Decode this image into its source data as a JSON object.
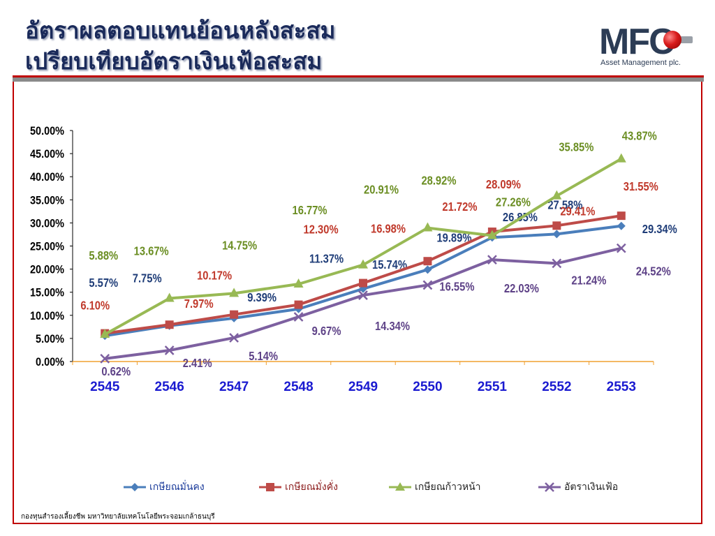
{
  "title": {
    "line1": "อัตราผลตอบแทนย้อนหลังสะสม",
    "line2": "เปรียบเทียบอัตราเงินเฟ้อสะสม"
  },
  "logo": {
    "text": "MFC",
    "subtitle": "Asset Management plc."
  },
  "footer": "กองทุนสำรองเลี้ยงชีพ มหาวิทยาลัยเทคโนโลยีพระจอมเกล้าธนบุรี",
  "colors": {
    "accent": "#c00000",
    "title": "#1a2a5a"
  },
  "chart_data": {
    "type": "line",
    "categories": [
      "2545",
      "2546",
      "2547",
      "2548",
      "2549",
      "2550",
      "2551",
      "2552",
      "2553"
    ],
    "ylim": [
      0,
      50
    ],
    "yticks": [
      "0.00%",
      "5.00%",
      "10.00%",
      "15.00%",
      "20.00%",
      "25.00%",
      "30.00%",
      "35.00%",
      "40.00%",
      "45.00%",
      "50.00%"
    ],
    "legend_position": "bottom",
    "grid": false,
    "series": [
      {
        "name": "เกษียณมั่นคง",
        "color": "#4a7ebb",
        "label_color": "#1f3d78",
        "marker": "diamond",
        "values": [
          5.57,
          7.75,
          9.39,
          11.37,
          15.74,
          19.89,
          26.85,
          27.58,
          29.34
        ],
        "labels": [
          "5.57%",
          "7.75%",
          "9.39%",
          "11.37%",
          "15.74%",
          "19.89%",
          "26.85%",
          "27.58%",
          "29.34%"
        ]
      },
      {
        "name": "เกษียณมั่งคั่ง",
        "color": "#be4b48",
        "label_color": "#c0392b",
        "marker": "square",
        "values": [
          6.1,
          7.97,
          10.17,
          12.3,
          16.98,
          21.72,
          28.09,
          29.41,
          31.55
        ],
        "labels": [
          "6.10%",
          "7.97%",
          "10.17%",
          "12.30%",
          "16.98%",
          "21.72%",
          "28.09%",
          "29.41%",
          "31.55%"
        ]
      },
      {
        "name": "เกษียณก้าวหน้า",
        "color": "#98b954",
        "label_color": "#6b8e23",
        "marker": "triangle",
        "values": [
          5.88,
          13.67,
          14.75,
          16.77,
          20.91,
          28.92,
          27.26,
          35.85,
          43.87
        ],
        "labels": [
          "5.88%",
          "13.67%",
          "14.75%",
          "16.77%",
          "20.91%",
          "28.92%",
          "27.26%",
          "35.85%",
          "43.87%"
        ]
      },
      {
        "name": "อัตราเงินเฟ้อ",
        "color": "#7d60a0",
        "label_color": "#5e4287",
        "marker": "x",
        "values": [
          0.62,
          2.41,
          5.14,
          9.67,
          14.34,
          16.55,
          22.03,
          21.24,
          24.52
        ],
        "labels": [
          "0.62%",
          "2.41%",
          "5.14%",
          "9.67%",
          "14.34%",
          "16.55%",
          "22.03%",
          "21.24%",
          "24.52%"
        ]
      }
    ]
  }
}
